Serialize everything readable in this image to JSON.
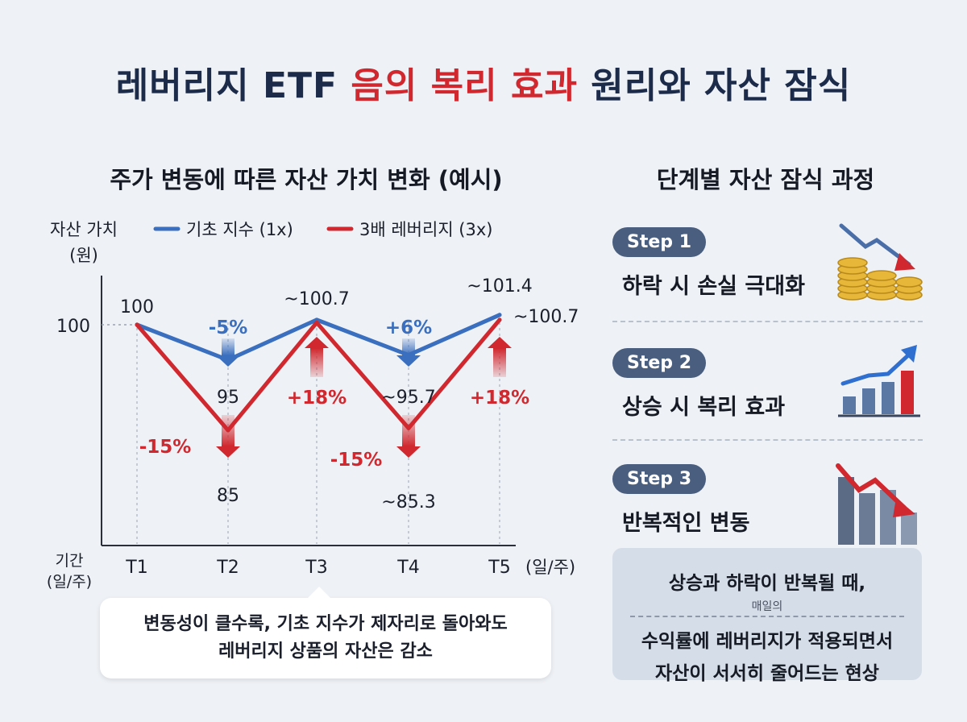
{
  "title": {
    "part1": "레버리지 ETF ",
    "highlight": "음의 복리 효과",
    "part2": " 원리와 자산 잠식"
  },
  "left_subtitle": "주가 변동에 따른 자산 가치 변화 (예시)",
  "right_subtitle": "단계별 자산 잠식 과정",
  "colors": {
    "base": "#3a6fbf",
    "lev": "#d0282e",
    "title": "#1c2b4a",
    "badge": "#4a5f80"
  },
  "chart_data": {
    "type": "line",
    "ylabel": "자산 가치\n(원)",
    "xlabel": "기간\n(일/주)",
    "x_unit": "(일/주)",
    "categories": [
      "T1",
      "T2",
      "T3",
      "T4",
      "T5"
    ],
    "y_tick": "100",
    "series": [
      {
        "name": "기초 지수 (1x)",
        "color": "#3a6fbf",
        "values": [
          100,
          95,
          100.7,
          95.7,
          101.4
        ],
        "point_labels": [
          "100",
          "95",
          "~100.7",
          "~95.7",
          "~101.4"
        ],
        "changes": [
          "-5%",
          "+6%"
        ]
      },
      {
        "name": "3배 레버리지 (3x)",
        "color": "#d0282e",
        "values": [
          100,
          85,
          100.3,
          85.3,
          100.7
        ],
        "point_labels": [
          "85",
          "~85.3",
          "~100.7"
        ],
        "changes": [
          "-15%",
          "+18%",
          "-15%",
          "+18%"
        ]
      }
    ]
  },
  "callout": {
    "line1": "변동성이 클수록, 기초 지수가 제자리로 돌아와도",
    "line2": "레버리지 상품의 자산은 감소"
  },
  "steps": [
    {
      "badge": "Step 1",
      "label": "하락 시 손실 극대화",
      "icon": "coins-down-icon"
    },
    {
      "badge": "Step 2",
      "label": "상승 시 복리 효과",
      "icon": "bars-up-icon"
    },
    {
      "badge": "Step 3",
      "label": "반복적인 변동",
      "icon": "bars-down-icon"
    }
  ],
  "summary": {
    "line1": "상승과 하락이 반복될 때,",
    "small": "매일의",
    "line2": "수익률에 레버리지가 적용되면서",
    "line3": "자산이 서서히 줄어드는 현상"
  }
}
